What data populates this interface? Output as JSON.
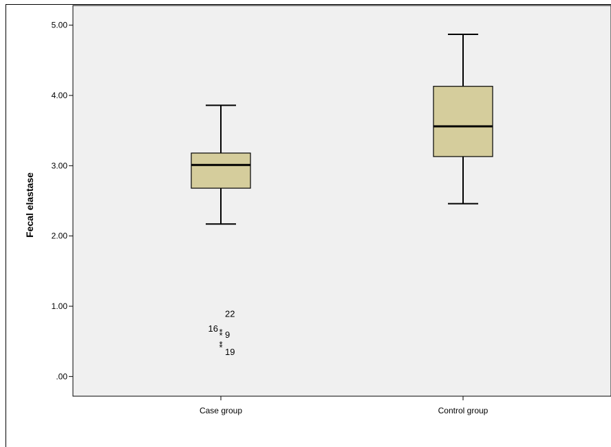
{
  "chart_data": {
    "type": "boxplot",
    "title": "",
    "xlabel": "",
    "ylabel": "Fecal elastase",
    "ylim": [
      -0.28,
      5.28
    ],
    "yticks": [
      0,
      1,
      2,
      3,
      4,
      5
    ],
    "ytick_labels": [
      ".00",
      "1.00",
      "2.00",
      "3.00",
      "4.00",
      "5.00"
    ],
    "categories": [
      "Case group",
      "Control group"
    ],
    "boxes": [
      {
        "category": "Case group",
        "whisker_low": 2.17,
        "q1": 2.68,
        "median": 3.01,
        "q3": 3.18,
        "whisker_high": 3.86,
        "outliers": [
          {
            "value": 0.65,
            "label": "16"
          },
          {
            "value": 0.6,
            "label": "9"
          },
          {
            "value": 0.47,
            "label": "19"
          },
          {
            "value": 0.43,
            "label": ""
          },
          {
            "value": 0.89,
            "label": "22",
            "label_only": true
          }
        ]
      },
      {
        "category": "Control group",
        "whisker_low": 2.46,
        "q1": 3.13,
        "median": 3.56,
        "q3": 4.13,
        "whisker_high": 4.87,
        "outliers": []
      }
    ],
    "colors": {
      "plot_background": "#f0f0f0",
      "box_fill": "#d5cd9c",
      "line": "#000000"
    },
    "grid": false,
    "legend": "none"
  }
}
